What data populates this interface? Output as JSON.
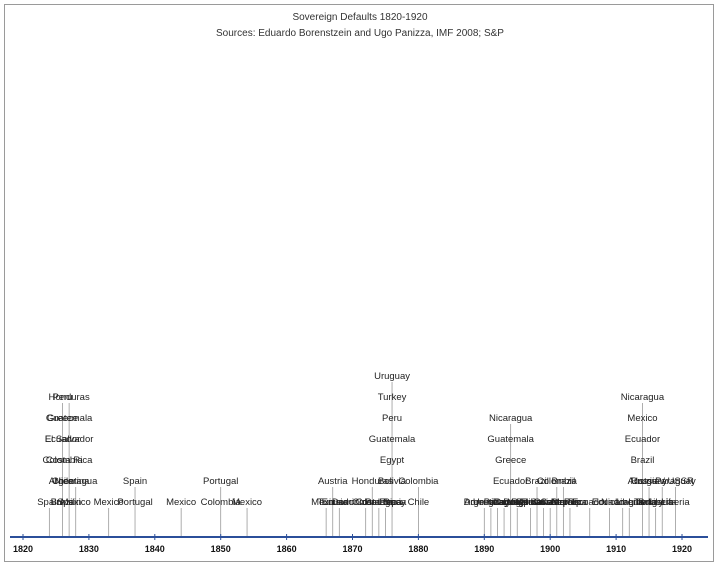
{
  "chart_data": {
    "type": "timeline",
    "title": "Sovereign Defaults 1820-1920",
    "subtitle": "Sources: Eduardo Borenstzein and Ugo Panizza, IMF 2008; S&P",
    "xlim": [
      1820,
      1920
    ],
    "x_ticks": [
      "1820",
      "1830",
      "1840",
      "1850",
      "1860",
      "1870",
      "1880",
      "1890",
      "1900",
      "1910",
      "1920"
    ],
    "axis_color": "#2b4f9a",
    "line_color": "#9a9a9a",
    "groups": [
      {
        "year": 1824,
        "countries": [
          "Spain"
        ]
      },
      {
        "year": 1826,
        "countries": [
          "Brazil",
          "Chile",
          "Colombia",
          "Ecuador",
          "Greece",
          "Peru"
        ]
      },
      {
        "year": 1827,
        "countries": [
          "Spain",
          "Argentina",
          "Costa Rica",
          "El Salvador",
          "Guatemala",
          "Honduras"
        ]
      },
      {
        "year": 1828,
        "countries": [
          "Mexico",
          "Nicaragua"
        ]
      },
      {
        "year": 1833,
        "countries": [
          "Mexico"
        ]
      },
      {
        "year": 1837,
        "countries": [
          "Portugal",
          "Spain"
        ]
      },
      {
        "year": 1844,
        "countries": [
          "Mexico"
        ]
      },
      {
        "year": 1850,
        "countries": [
          "Colombia",
          "Portugal"
        ]
      },
      {
        "year": 1854,
        "countries": [
          "Mexico"
        ]
      },
      {
        "year": 1866,
        "countries": [
          "Mexico"
        ]
      },
      {
        "year": 1867,
        "countries": [
          "Tunisia",
          "Austria"
        ]
      },
      {
        "year": 1868,
        "countries": [
          "Ecuador"
        ]
      },
      {
        "year": 1872,
        "countries": [
          "Dominican Rep."
        ]
      },
      {
        "year": 1873,
        "countries": [
          "Colombia",
          "Honduras"
        ]
      },
      {
        "year": 1874,
        "countries": [
          "Costa Rica"
        ]
      },
      {
        "year": 1875,
        "countries": [
          "Paraguay"
        ]
      },
      {
        "year": 1876,
        "countries": [
          "Liberia",
          "Bolivia",
          "Egypt",
          "Guatemala",
          "Peru",
          "Turkey",
          "Uruguay"
        ]
      },
      {
        "year": 1880,
        "countries": [
          "Chile",
          "Colombia"
        ]
      },
      {
        "year": 1890,
        "countries": [
          "Argentina"
        ]
      },
      {
        "year": 1891,
        "countries": [
          "Uruguay"
        ]
      },
      {
        "year": 1892,
        "countries": [
          "Dominican Rep."
        ]
      },
      {
        "year": 1893,
        "countries": [
          "Paraguay"
        ]
      },
      {
        "year": 1894,
        "countries": [
          "Portugal",
          "Ecuador",
          "Greece",
          "Guatemala",
          "Nicaragua"
        ]
      },
      {
        "year": 1895,
        "countries": [
          "Costa Rica"
        ]
      },
      {
        "year": 1897,
        "countries": [
          "Yugoslavia"
        ]
      },
      {
        "year": 1898,
        "countries": [
          "Dominican Rep.",
          "Brazil"
        ]
      },
      {
        "year": 1899,
        "countries": [
          "El Salvador"
        ]
      },
      {
        "year": 1900,
        "countries": [
          "Dominican Rep."
        ]
      },
      {
        "year": 1901,
        "countries": [
          "Guatemala",
          "Colombia"
        ]
      },
      {
        "year": 1902,
        "countries": [
          "Costa Rica",
          "Brazil"
        ]
      },
      {
        "year": 1903,
        "countries": [
          "Morocco"
        ]
      },
      {
        "year": 1906,
        "countries": [
          "Ecuador"
        ]
      },
      {
        "year": 1909,
        "countries": [
          "Ecuador"
        ]
      },
      {
        "year": 1911,
        "countries": [
          "Nicaragua"
        ]
      },
      {
        "year": 1912,
        "countries": [
          "Liberia"
        ]
      },
      {
        "year": 1914,
        "countries": [
          "Liberia",
          "Austria",
          "Brazil",
          "Ecuador",
          "Mexico",
          "Nicaragua"
        ]
      },
      {
        "year": 1915,
        "countries": [
          "Turkey",
          "Uruguay"
        ]
      },
      {
        "year": 1916,
        "countries": [
          "Bulgaria"
        ]
      },
      {
        "year": 1917,
        "countries": [
          "Liberia",
          "Russia / USSR"
        ]
      },
      {
        "year": 1919,
        "countries": [
          "Liberia",
          "Paraguay"
        ]
      }
    ]
  }
}
